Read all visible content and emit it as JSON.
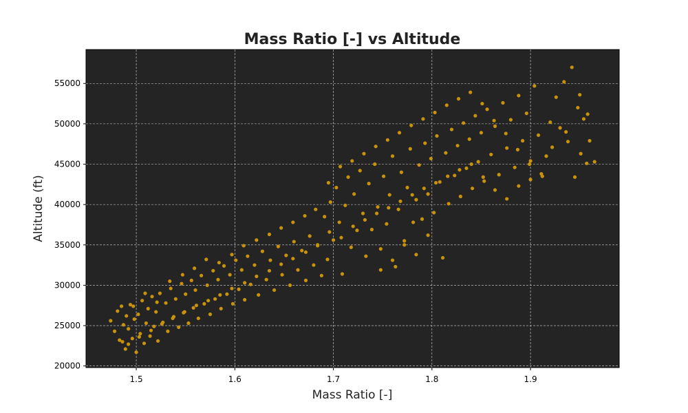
{
  "chart_data": {
    "type": "scatter",
    "title": "Mass Ratio [-] vs Altitude",
    "xlabel": "Mass Ratio [-]",
    "ylabel": "Altitude (ft)",
    "xlim": [
      1.449,
      1.99
    ],
    "ylim": [
      19800,
      59200
    ],
    "xticks": [
      1.5,
      1.6,
      1.7,
      1.8,
      1.9
    ],
    "xtick_labels": [
      "1.5",
      "1.6",
      "1.7",
      "1.8",
      "1.9"
    ],
    "yticks": [
      20000,
      25000,
      30000,
      35000,
      40000,
      45000,
      50000,
      55000
    ],
    "ytick_labels": [
      "20000",
      "25000",
      "30000",
      "35000",
      "40000",
      "45000",
      "50000",
      "55000"
    ],
    "grid": true,
    "colors": {
      "background": "#242424",
      "point": "#c8920c",
      "grid": "#d8d8d8"
    },
    "series": [
      {
        "values_format": "x,y",
        "points": [
          [
            1.474,
            25600
          ],
          [
            1.478,
            24300
          ],
          [
            1.481,
            26800
          ],
          [
            1.483,
            23200
          ],
          [
            1.485,
            27400
          ],
          [
            1.487,
            25100
          ],
          [
            1.489,
            22100
          ],
          [
            1.49,
            26200
          ],
          [
            1.492,
            24600
          ],
          [
            1.494,
            27600
          ],
          [
            1.496,
            23400
          ],
          [
            1.498,
            25800
          ],
          [
            1.5,
            21700
          ],
          [
            1.502,
            26400
          ],
          [
            1.504,
            24000
          ],
          [
            1.506,
            28100
          ],
          [
            1.508,
            22800
          ],
          [
            1.51,
            25300
          ],
          [
            1.512,
            27100
          ],
          [
            1.514,
            23700
          ],
          [
            1.516,
            28600
          ],
          [
            1.518,
            24900
          ],
          [
            1.52,
            26700
          ],
          [
            1.522,
            23100
          ],
          [
            1.524,
            29000
          ],
          [
            1.527,
            25400
          ],
          [
            1.53,
            27800
          ],
          [
            1.532,
            24300
          ],
          [
            1.535,
            29600
          ],
          [
            1.538,
            26100
          ],
          [
            1.54,
            28300
          ],
          [
            1.543,
            24800
          ],
          [
            1.546,
            30200
          ],
          [
            1.548,
            26600
          ],
          [
            1.55,
            28900
          ],
          [
            1.553,
            25300
          ],
          [
            1.556,
            30600
          ],
          [
            1.558,
            27200
          ],
          [
            1.56,
            29400
          ],
          [
            1.563,
            25900
          ],
          [
            1.566,
            31200
          ],
          [
            1.569,
            27700
          ],
          [
            1.572,
            30000
          ],
          [
            1.575,
            26400
          ],
          [
            1.578,
            31800
          ],
          [
            1.58,
            28300
          ],
          [
            1.583,
            30700
          ],
          [
            1.586,
            27100
          ],
          [
            1.589,
            32400
          ],
          [
            1.592,
            28900
          ],
          [
            1.595,
            31300
          ],
          [
            1.598,
            27700
          ],
          [
            1.601,
            33100
          ],
          [
            1.604,
            29500
          ],
          [
            1.607,
            31900
          ],
          [
            1.61,
            28200
          ],
          [
            1.613,
            33600
          ],
          [
            1.616,
            30100
          ],
          [
            1.62,
            32500
          ],
          [
            1.624,
            28800
          ],
          [
            1.628,
            34200
          ],
          [
            1.632,
            30700
          ],
          [
            1.636,
            33100
          ],
          [
            1.64,
            29400
          ],
          [
            1.644,
            34800
          ],
          [
            1.648,
            31300
          ],
          [
            1.652,
            33700
          ],
          [
            1.656,
            30000
          ],
          [
            1.66,
            35400
          ],
          [
            1.664,
            31900
          ],
          [
            1.668,
            34300
          ],
          [
            1.672,
            30600
          ],
          [
            1.676,
            36100
          ],
          [
            1.68,
            32500
          ],
          [
            1.684,
            35000
          ],
          [
            1.688,
            31200
          ],
          [
            1.691,
            38500
          ],
          [
            1.694,
            33200
          ],
          [
            1.697,
            40300
          ],
          [
            1.7,
            35600
          ],
          [
            1.703,
            42100
          ],
          [
            1.706,
            37800
          ],
          [
            1.709,
            31400
          ],
          [
            1.712,
            39900
          ],
          [
            1.715,
            43400
          ],
          [
            1.718,
            34700
          ],
          [
            1.721,
            41300
          ],
          [
            1.724,
            36800
          ],
          [
            1.727,
            44200
          ],
          [
            1.73,
            38900
          ],
          [
            1.733,
            33600
          ],
          [
            1.736,
            42600
          ],
          [
            1.739,
            36900
          ],
          [
            1.742,
            45000
          ],
          [
            1.745,
            39700
          ],
          [
            1.748,
            34500
          ],
          [
            1.751,
            43500
          ],
          [
            1.754,
            37600
          ],
          [
            1.757,
            41200
          ],
          [
            1.76,
            46000
          ],
          [
            1.763,
            32300
          ],
          [
            1.766,
            39400
          ],
          [
            1.769,
            44000
          ],
          [
            1.772,
            35500
          ],
          [
            1.775,
            42100
          ],
          [
            1.778,
            46900
          ],
          [
            1.781,
            37800
          ],
          [
            1.784,
            40600
          ],
          [
            1.787,
            44900
          ],
          [
            1.79,
            38200
          ],
          [
            1.793,
            47600
          ],
          [
            1.796,
            41300
          ],
          [
            1.799,
            45700
          ],
          [
            1.802,
            39000
          ],
          [
            1.805,
            48500
          ],
          [
            1.808,
            42800
          ],
          [
            1.811,
            33400
          ],
          [
            1.814,
            46400
          ],
          [
            1.817,
            40100
          ],
          [
            1.82,
            49300
          ],
          [
            1.823,
            43600
          ],
          [
            1.826,
            47300
          ],
          [
            1.829,
            41000
          ],
          [
            1.832,
            50100
          ],
          [
            1.835,
            44500
          ],
          [
            1.838,
            48100
          ],
          [
            1.841,
            42000
          ],
          [
            1.844,
            51000
          ],
          [
            1.847,
            45300
          ],
          [
            1.85,
            48900
          ],
          [
            1.853,
            42900
          ],
          [
            1.856,
            51800
          ],
          [
            1.86,
            46200
          ],
          [
            1.864,
            49700
          ],
          [
            1.868,
            43700
          ],
          [
            1.872,
            52600
          ],
          [
            1.876,
            47000
          ],
          [
            1.88,
            50500
          ],
          [
            1.884,
            44600
          ],
          [
            1.888,
            53500
          ],
          [
            1.892,
            47900
          ],
          [
            1.896,
            51300
          ],
          [
            1.9,
            45400
          ],
          [
            1.904,
            54700
          ],
          [
            1.908,
            48600
          ],
          [
            1.912,
            43500
          ],
          [
            1.916,
            46000
          ],
          [
            1.92,
            50200
          ],
          [
            1.926,
            53300
          ],
          [
            1.93,
            49500
          ],
          [
            1.934,
            55200
          ],
          [
            1.938,
            47800
          ],
          [
            1.942,
            57000
          ],
          [
            1.945,
            43400
          ],
          [
            1.948,
            52000
          ],
          [
            1.951,
            46300
          ],
          [
            1.954,
            50600
          ],
          [
            1.957,
            45100
          ],
          [
            1.96,
            47900
          ],
          [
            1.965,
            45300
          ],
          [
            1.486,
            23000
          ],
          [
            1.497,
            27400
          ],
          [
            1.509,
            29000
          ],
          [
            1.521,
            27900
          ],
          [
            1.534,
            30500
          ],
          [
            1.547,
            31300
          ],
          [
            1.559,
            32100
          ],
          [
            1.571,
            33200
          ],
          [
            1.584,
            32800
          ],
          [
            1.597,
            33800
          ],
          [
            1.609,
            34900
          ],
          [
            1.622,
            35600
          ],
          [
            1.635,
            36300
          ],
          [
            1.647,
            37100
          ],
          [
            1.659,
            37800
          ],
          [
            1.671,
            38600
          ],
          [
            1.682,
            39400
          ],
          [
            1.695,
            42700
          ],
          [
            1.707,
            44700
          ],
          [
            1.719,
            45400
          ],
          [
            1.731,
            46300
          ],
          [
            1.743,
            47200
          ],
          [
            1.755,
            48000
          ],
          [
            1.767,
            48900
          ],
          [
            1.779,
            49800
          ],
          [
            1.791,
            50600
          ],
          [
            1.803,
            51400
          ],
          [
            1.815,
            52300
          ],
          [
            1.827,
            53100
          ],
          [
            1.839,
            53900
          ],
          [
            1.851,
            52500
          ],
          [
            1.863,
            50400
          ],
          [
            1.875,
            48800
          ],
          [
            1.887,
            46800
          ],
          [
            1.899,
            45000
          ],
          [
            1.911,
            43800
          ],
          [
            1.922,
            47100
          ],
          [
            1.936,
            49000
          ],
          [
            1.95,
            53600
          ],
          [
            1.958,
            51200
          ],
          [
            1.492,
            22700
          ],
          [
            1.503,
            23600
          ],
          [
            1.515,
            24400
          ],
          [
            1.526,
            25200
          ],
          [
            1.537,
            25900
          ],
          [
            1.549,
            26700
          ],
          [
            1.561,
            27500
          ],
          [
            1.573,
            28100
          ],
          [
            1.585,
            28800
          ],
          [
            1.597,
            29600
          ],
          [
            1.61,
            30300
          ],
          [
            1.622,
            31100
          ],
          [
            1.635,
            31800
          ],
          [
            1.647,
            32600
          ],
          [
            1.659,
            33300
          ],
          [
            1.672,
            34100
          ],
          [
            1.684,
            34900
          ],
          [
            1.696,
            36600
          ],
          [
            1.708,
            35900
          ],
          [
            1.72,
            37300
          ],
          [
            1.732,
            38100
          ],
          [
            1.744,
            38900
          ],
          [
            1.756,
            39600
          ],
          [
            1.768,
            40400
          ],
          [
            1.78,
            41200
          ],
          [
            1.792,
            42000
          ],
          [
            1.804,
            42700
          ],
          [
            1.816,
            43500
          ],
          [
            1.828,
            44300
          ],
          [
            1.84,
            45000
          ],
          [
            1.852,
            43400
          ],
          [
            1.864,
            41800
          ],
          [
            1.876,
            40700
          ],
          [
            1.888,
            42300
          ],
          [
            1.9,
            43100
          ],
          [
            1.748,
            31900
          ],
          [
            1.76,
            33100
          ],
          [
            1.772,
            35000
          ],
          [
            1.784,
            33800
          ],
          [
            1.796,
            36200
          ]
        ]
      }
    ]
  }
}
